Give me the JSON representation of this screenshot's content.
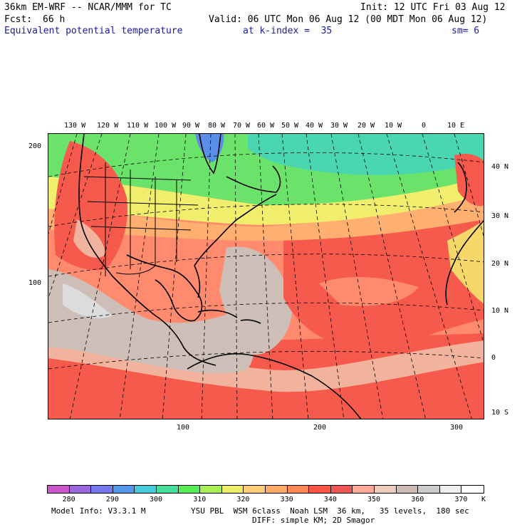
{
  "header": {
    "model_title": "36km EM-WRF -- NCAR/MMM for TC",
    "init_label": "Init: 12 UTC Fri 03 Aug 12",
    "fcst_label": "Fcst:",
    "fcst_value": "66 h",
    "valid_label": "Valid: 06 UTC Mon 06 Aug 12 (00 MDT Mon 06 Aug 12)",
    "field_name": "Equivalent potential temperature",
    "level_label": "at k-index =  35",
    "smooth_label": "sm= 6"
  },
  "map": {
    "lon_labels": [
      "130 W",
      "120 W",
      "110 W",
      "100 W",
      "90 W",
      "80 W",
      "70 W",
      "60 W",
      "50 W",
      "40 W",
      "30 W",
      "20 W",
      "10 W",
      "0",
      "10 E"
    ],
    "lat_labels": [
      "40 N",
      "30 N",
      "20 N",
      "10 N",
      "0",
      "10 S"
    ],
    "y_grid_labels": [
      "200",
      "100"
    ],
    "x_grid_labels": [
      "100",
      "200",
      "300"
    ]
  },
  "colorbar": {
    "colors": [
      "#cc55cc",
      "#9966dd",
      "#7777ee",
      "#5599ee",
      "#44ccdd",
      "#44dd99",
      "#55ee55",
      "#aaee55",
      "#eeee66",
      "#ffcc77",
      "#ffaa66",
      "#ff8855",
      "#ff5544",
      "#ee5555",
      "#ffaa99",
      "#eeccbb",
      "#ccbbb3",
      "#cccccc",
      "#eeeeee",
      "#ffffff"
    ],
    "tick_labels": [
      "280",
      "290",
      "300",
      "310",
      "320",
      "330",
      "340",
      "350",
      "360",
      "370"
    ],
    "units": "K"
  },
  "footer": {
    "model_info": "Model Info: V3.3.1 M",
    "physics": "YSU PBL  WSM 6class  Noah LSM  36 km,   35 levels,  180 sec",
    "diffusion": "DIFF: simple KM; 2D Smagor"
  }
}
